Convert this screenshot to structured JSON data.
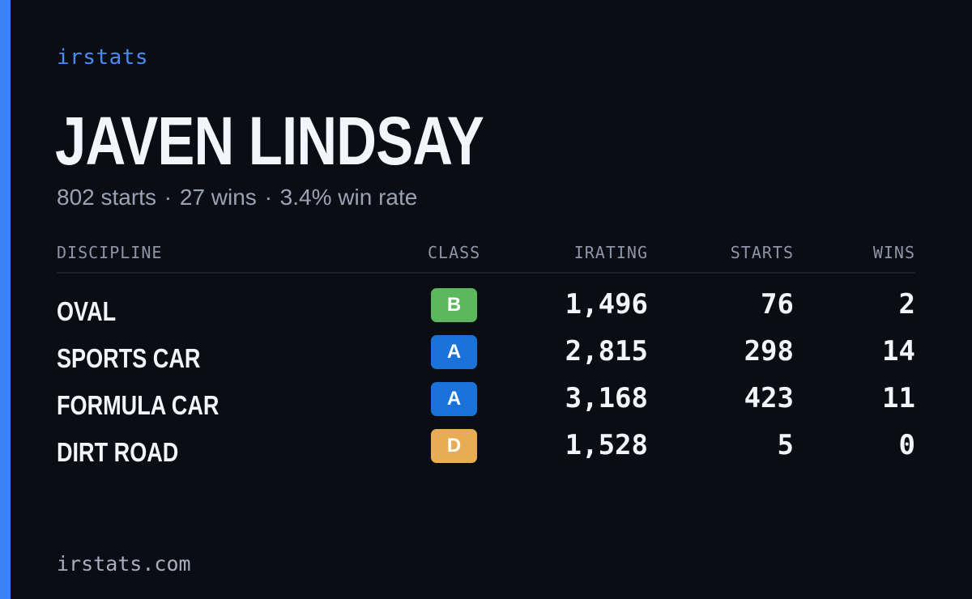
{
  "brand": "irstats",
  "player": {
    "name": "JAVEN LINDSAY",
    "summary": {
      "starts": "802 starts",
      "wins": "27 wins",
      "win_rate": "3.4% win rate",
      "separator": "·"
    }
  },
  "table": {
    "headers": {
      "discipline": "DISCIPLINE",
      "class": "CLASS",
      "irating": "IRATING",
      "starts": "STARTS",
      "wins": "WINS"
    },
    "rows": [
      {
        "discipline": "OVAL",
        "class": "B",
        "class_color": "#5cb85c",
        "irating": "1,496",
        "starts": "76",
        "wins": "2"
      },
      {
        "discipline": "SPORTS CAR",
        "class": "A",
        "class_color": "#1a73d9",
        "irating": "2,815",
        "starts": "298",
        "wins": "14"
      },
      {
        "discipline": "FORMULA CAR",
        "class": "A",
        "class_color": "#1a73d9",
        "irating": "3,168",
        "starts": "423",
        "wins": "11"
      },
      {
        "discipline": "DIRT ROAD",
        "class": "D",
        "class_color": "#e8ac55",
        "irating": "1,528",
        "starts": "5",
        "wins": "0"
      }
    ]
  },
  "footer": "irstats.com",
  "colors": {
    "background": "#0a0d14",
    "accent": "#3b82f6",
    "brand_text": "#4a8af4"
  }
}
